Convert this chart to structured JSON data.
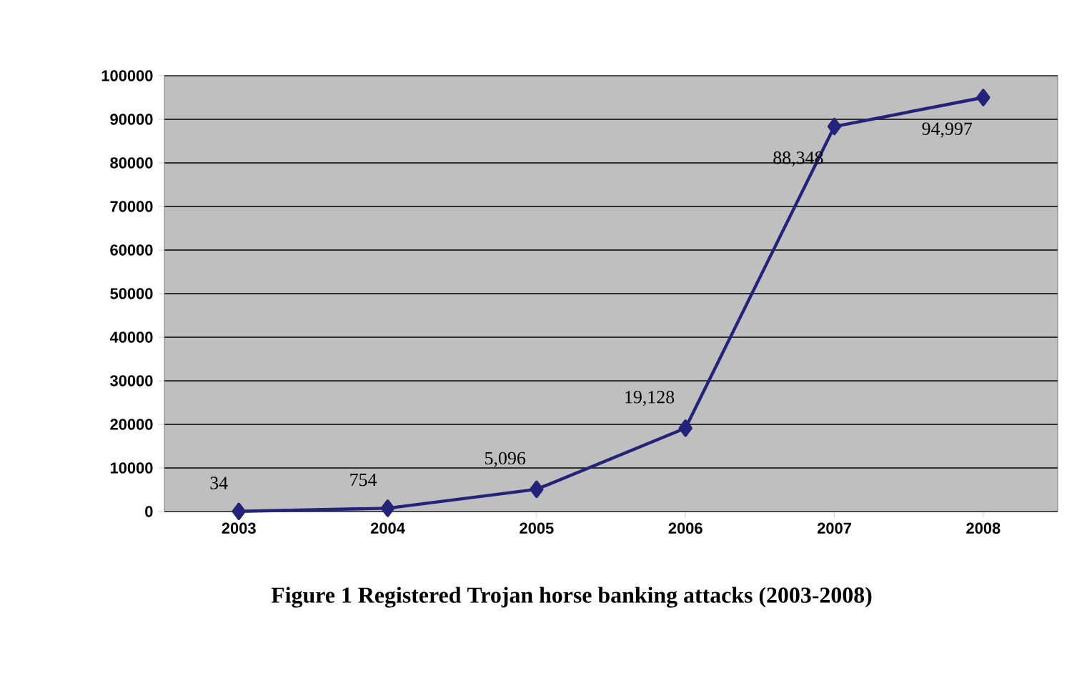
{
  "chart_data": {
    "type": "line",
    "title": "Figure 1 Registered Trojan horse banking attacks (2003-2008)",
    "categories": [
      "2003",
      "2004",
      "2005",
      "2006",
      "2007",
      "2008"
    ],
    "series": [
      {
        "color": "#23237a",
        "values": [
          34,
          754,
          5096,
          19128,
          88348,
          94997
        ],
        "value_labels": [
          "34",
          "754",
          "5,096",
          "19,128",
          "88,348",
          "94,997"
        ]
      }
    ],
    "ylim": [
      0,
      100000
    ],
    "yticks": [
      0,
      10000,
      20000,
      30000,
      40000,
      50000,
      60000,
      70000,
      80000,
      90000,
      100000
    ],
    "grid": "y",
    "marker": "diamond",
    "line_style": "solid"
  }
}
